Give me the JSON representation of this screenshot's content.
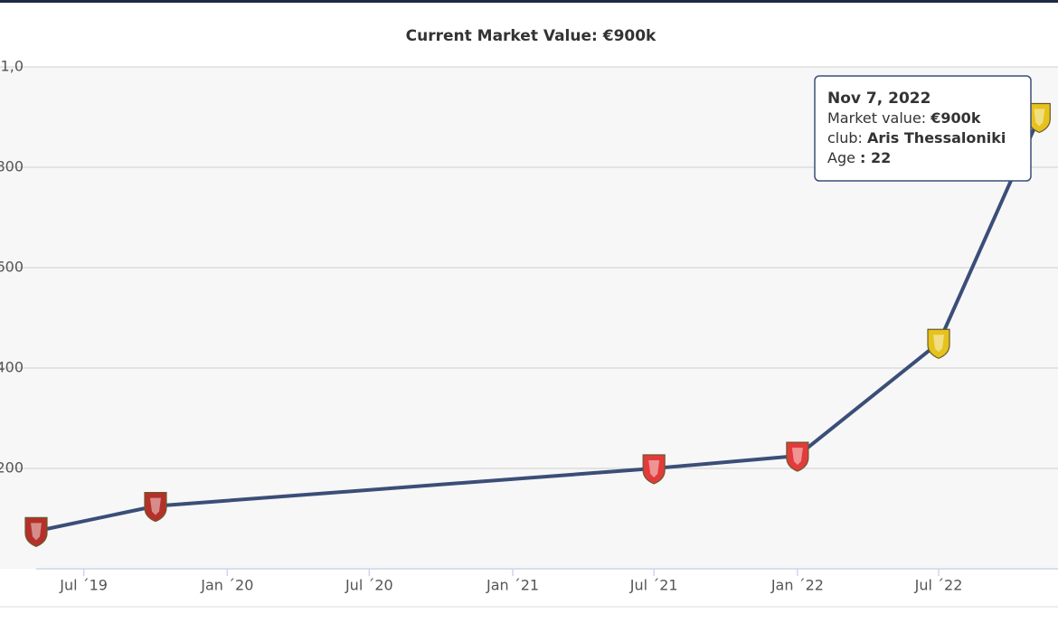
{
  "chart_data": {
    "type": "line",
    "title": "Current Market Value: €900k",
    "x": [
      "2019-05",
      "2019-10",
      "2021-07",
      "2022-01",
      "2022-07",
      "2022-11-07"
    ],
    "series": [
      {
        "color": "#3b4e78",
        "values": [
          75,
          125,
          200,
          225,
          450,
          900
        ]
      }
    ],
    "marker_colors": [
      "#b5302a",
      "#b5302a",
      "#e23b3b",
      "#e23b3b",
      "#e6c31c",
      "#e6c31c"
    ],
    "xlim": [
      "2019-05",
      "2022-12"
    ],
    "xticks": [
      {
        "value": "2019-07",
        "label": "Jul ´19"
      },
      {
        "value": "2020-01",
        "label": "Jan ´20"
      },
      {
        "value": "2020-07",
        "label": "Jul ´20"
      },
      {
        "value": "2021-01",
        "label": "Jan ´21"
      },
      {
        "value": "2021-07",
        "label": "Jul ´21"
      },
      {
        "value": "2022-01",
        "label": "Jan ´22"
      },
      {
        "value": "2022-07",
        "label": "Jul ´22"
      }
    ],
    "ylim": [
      0,
      1000
    ],
    "yticks": [
      200,
      400,
      600,
      800,
      {
        "value": 1000,
        "label": "1,0"
      }
    ],
    "grid": true,
    "tooltip": {
      "date": "Nov 7, 2022",
      "items": [
        {
          "label": "Market value:",
          "value": "€900k"
        },
        {
          "label": "club:",
          "value": "Aris Thessaloniki"
        },
        {
          "label": "Age",
          "value": ": 22"
        }
      ]
    }
  }
}
